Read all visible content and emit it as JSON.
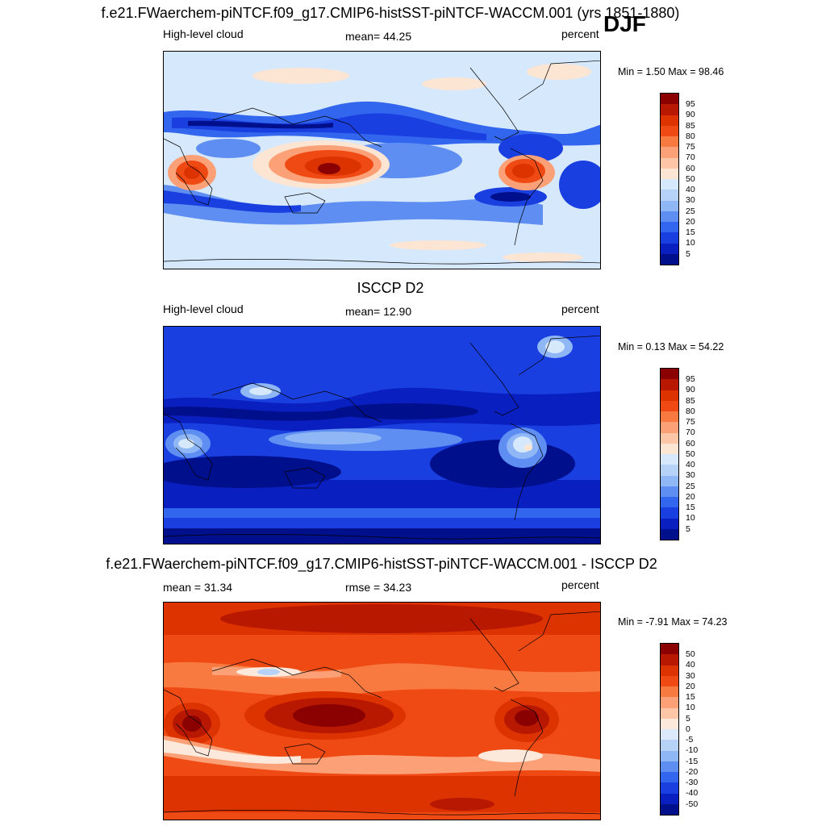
{
  "page": {
    "season": "DJF"
  },
  "panels": [
    {
      "title": "f.e21.FWaerchem-piNTCF.f09_g17.CMIP6-histSST-piNTCF-WACCM.001 (yrs 1851-1880)",
      "left_label": "High-level cloud",
      "center_label": "mean=  44.25",
      "units": "percent",
      "minmax": "Min =   1.50 Max =  98.46",
      "colorbar_ticks": [
        "95",
        "90",
        "85",
        "80",
        "75",
        "70",
        "60",
        "50",
        "40",
        "30",
        "25",
        "20",
        "15",
        "10",
        "5"
      ],
      "colorbar_colors": [
        "#8b0000",
        "#b81800",
        "#dc3300",
        "#f04a14",
        "#f97a40",
        "#fca177",
        "#fdc6a7",
        "#fde5d3",
        "#d6e8fb",
        "#b6d3f7",
        "#8fb6f5",
        "#5f8ef2",
        "#3366ee",
        "#1a3fe0",
        "#0a1fc0",
        "#000f8c"
      ]
    },
    {
      "title": "ISCCP D2",
      "left_label": "High-level cloud",
      "center_label": "mean=  12.90",
      "units": "percent",
      "minmax": "Min =   0.13 Max =  54.22",
      "colorbar_ticks": [
        "95",
        "90",
        "85",
        "80",
        "75",
        "70",
        "60",
        "50",
        "40",
        "30",
        "25",
        "20",
        "15",
        "10",
        "5"
      ],
      "colorbar_colors": [
        "#8b0000",
        "#b81800",
        "#dc3300",
        "#f04a14",
        "#f97a40",
        "#fca177",
        "#fdc6a7",
        "#fde5d3",
        "#d6e8fb",
        "#b6d3f7",
        "#8fb6f5",
        "#5f8ef2",
        "#3366ee",
        "#1a3fe0",
        "#0a1fc0",
        "#000f8c"
      ]
    },
    {
      "title": "f.e21.FWaerchem-piNTCF.f09_g17.CMIP6-histSST-piNTCF-WACCM.001 - ISCCP D2",
      "left_label": "mean =  31.34",
      "center_label": "rmse =  34.23",
      "units": "percent",
      "minmax": "Min =  -7.91 Max =  74.23",
      "colorbar_ticks": [
        "50",
        "40",
        "30",
        "20",
        "15",
        "10",
        "5",
        "0",
        "-5",
        "-10",
        "-15",
        "-20",
        "-30",
        "-40",
        "-50"
      ],
      "colorbar_colors": [
        "#8b0000",
        "#b81800",
        "#dc3300",
        "#f04a14",
        "#f97a40",
        "#fca177",
        "#fdc6a7",
        "#fde9dc",
        "#dce9fb",
        "#b6d3f7",
        "#8fb6f5",
        "#5f8ef2",
        "#3366ee",
        "#1a3fe0",
        "#0a1fc0",
        "#000f8c"
      ]
    }
  ]
}
